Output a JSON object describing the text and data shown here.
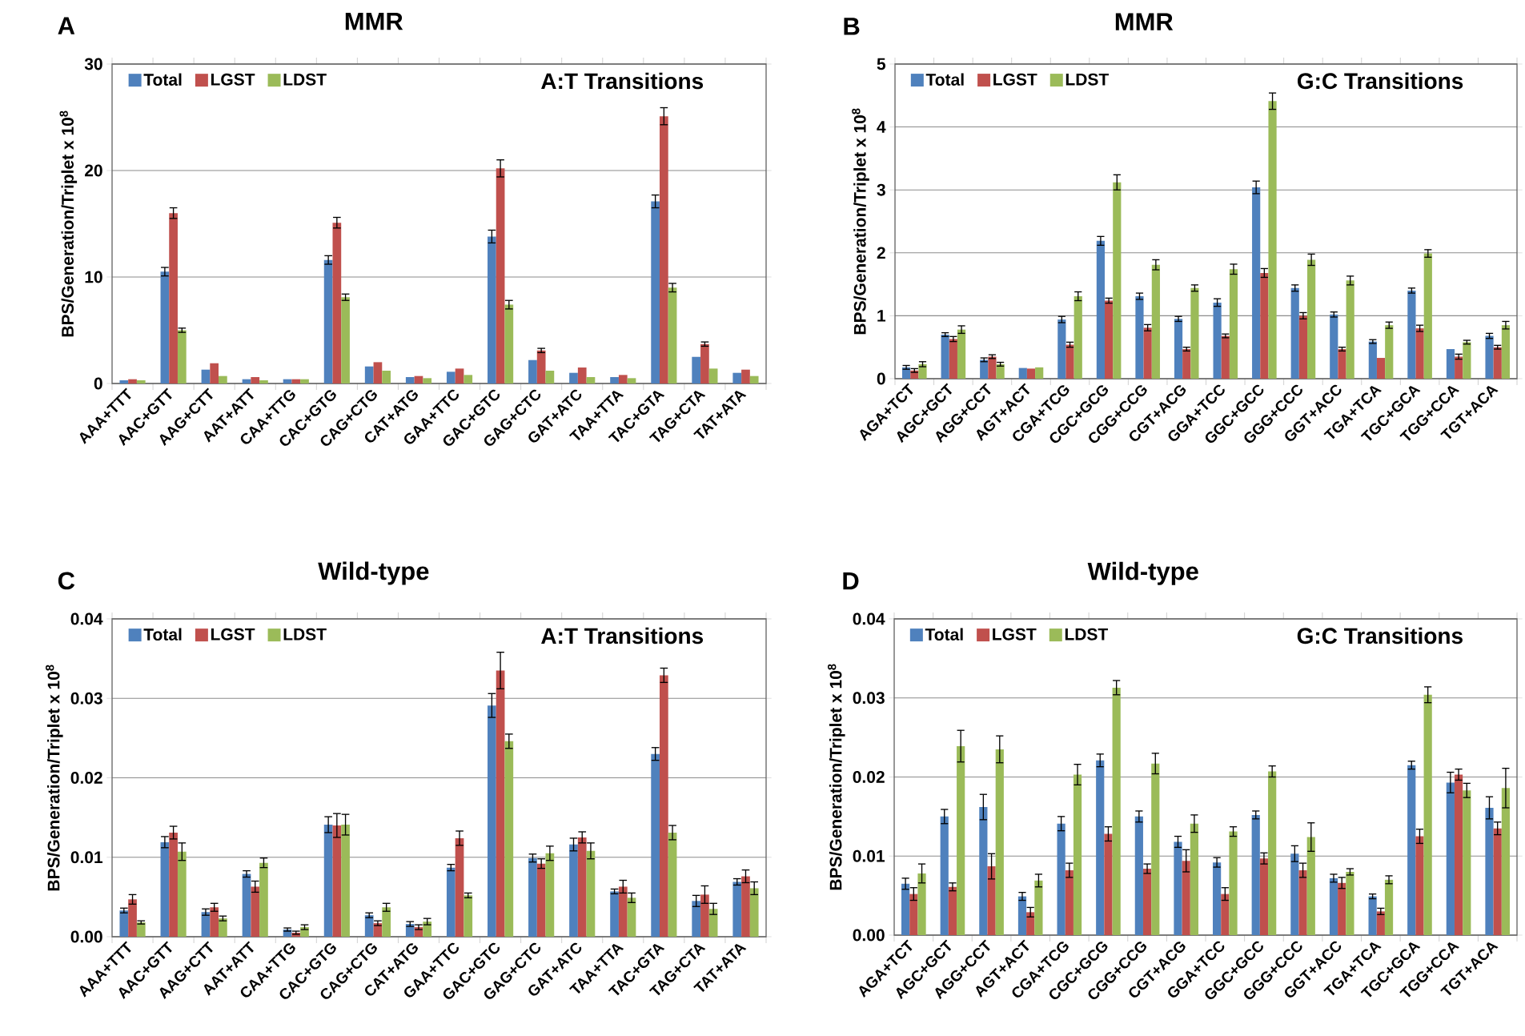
{
  "chart_data": [
    {
      "type": "bar",
      "title": "MMR",
      "subtitle": "A:T Transitions",
      "ylabel": "BPS/Generation/Triplet x 10$^{8}$",
      "annotations": [
        "A"
      ],
      "categories": [
        "AAA+TTT",
        "AAC+GTT",
        "AAG+CTT",
        "AAT+ATT",
        "CAA+TTG",
        "CAC+GTG",
        "CAG+CTG",
        "CAT+ATG",
        "GAA+TTC",
        "GAC+GTC",
        "GAG+CTC",
        "GAT+ATC",
        "TAA+TTA",
        "TAC+GTA",
        "TAG+CTA",
        "TAT+ATA"
      ],
      "series": [
        {
          "name": "Total",
          "color": "#4f81bd",
          "values": [
            0.3,
            10.5,
            1.3,
            0.4,
            0.4,
            11.6,
            1.6,
            0.6,
            1.1,
            13.8,
            2.2,
            1.0,
            0.6,
            17.1,
            2.5,
            1.0
          ],
          "errors": [
            null,
            0.4,
            null,
            null,
            null,
            0.4,
            null,
            null,
            null,
            0.6,
            null,
            null,
            null,
            0.6,
            null,
            null
          ]
        },
        {
          "name": "LGST",
          "color": "#c0504d",
          "values": [
            0.4,
            16.0,
            1.9,
            0.6,
            0.4,
            15.1,
            2.0,
            0.7,
            1.4,
            20.2,
            3.1,
            1.5,
            0.8,
            25.1,
            3.7,
            1.3
          ],
          "errors": [
            null,
            0.5,
            null,
            null,
            null,
            0.5,
            null,
            null,
            null,
            0.8,
            0.2,
            null,
            null,
            0.8,
            0.2,
            null
          ]
        },
        {
          "name": "LDST",
          "color": "#9bbb59",
          "values": [
            0.3,
            5.0,
            0.7,
            0.3,
            0.4,
            8.1,
            1.2,
            0.5,
            0.8,
            7.4,
            1.2,
            0.6,
            0.5,
            9.0,
            1.4,
            0.7
          ],
          "errors": [
            null,
            0.2,
            null,
            null,
            null,
            0.3,
            null,
            null,
            null,
            0.4,
            null,
            null,
            null,
            0.4,
            null,
            null
          ]
        }
      ],
      "ylim": [
        0,
        30
      ],
      "yticks": [
        0,
        10,
        20,
        30
      ],
      "grid": "y",
      "legend": "top left"
    },
    {
      "type": "bar",
      "title": "MMR",
      "subtitle": "G:C Transitions",
      "ylabel": "BPS/Generation/Triplet x 10$^{8}$",
      "annotations": [
        "B"
      ],
      "categories": [
        "AGA+TCT",
        "AGC+GCT",
        "AGG+CCT",
        "AGT+ACT",
        "CGA+TCG",
        "CGC+GCG",
        "CGG+CCG",
        "CGT+ACG",
        "GGA+TCC",
        "GGC+GCC",
        "GGG+CCC",
        "GGT+ACC",
        "TGA+TCA",
        "TGC+GCA",
        "TGG+CCA",
        "TGT+ACA"
      ],
      "series": [
        {
          "name": "Total",
          "color": "#4f81bd",
          "values": [
            0.18,
            0.7,
            0.3,
            0.17,
            0.94,
            2.19,
            1.31,
            0.95,
            1.21,
            3.04,
            1.44,
            1.02,
            0.59,
            1.4,
            0.47,
            0.68
          ],
          "errors": [
            0.03,
            0.03,
            0.03,
            null,
            0.05,
            0.07,
            0.05,
            0.04,
            0.06,
            0.1,
            0.05,
            0.04,
            0.03,
            0.04,
            null,
            0.04
          ]
        },
        {
          "name": "LGST",
          "color": "#c0504d",
          "values": [
            0.13,
            0.63,
            0.35,
            0.16,
            0.54,
            1.24,
            0.81,
            0.47,
            0.68,
            1.68,
            1.0,
            0.47,
            0.33,
            0.8,
            0.35,
            0.5
          ],
          "errors": [
            0.03,
            0.04,
            0.03,
            null,
            0.04,
            0.04,
            0.05,
            0.03,
            0.03,
            0.07,
            0.05,
            0.03,
            null,
            0.05,
            0.04,
            0.03
          ]
        },
        {
          "name": "LDST",
          "color": "#9bbb59",
          "values": [
            0.23,
            0.78,
            0.23,
            0.18,
            1.31,
            3.12,
            1.81,
            1.44,
            1.74,
            4.41,
            1.89,
            1.56,
            0.85,
            1.99,
            0.58,
            0.85
          ],
          "errors": [
            0.04,
            0.06,
            0.03,
            null,
            0.07,
            0.12,
            0.08,
            0.05,
            0.08,
            0.13,
            0.09,
            0.07,
            0.05,
            0.06,
            0.03,
            0.06
          ]
        }
      ],
      "ylim": [
        0,
        5
      ],
      "yticks": [
        0,
        1,
        2,
        3,
        4,
        5
      ],
      "grid": "y",
      "legend": "top left"
    },
    {
      "type": "bar",
      "title": "Wild-type",
      "subtitle": "A:T Transitions",
      "ylabel": "BPS/Generation/Triplet x 10$^{8}$",
      "annotations": [
        "C"
      ],
      "categories": [
        "AAA+TTT",
        "AAC+GTT",
        "AAG+CTT",
        "AAT+ATT",
        "CAA+TTG",
        "CAC+GTG",
        "CAG+CTG",
        "CAT+ATG",
        "GAA+TTC",
        "GAC+GTC",
        "GAG+CTC",
        "GAT+ATC",
        "TAA+TTA",
        "TAC+GTA",
        "TAG+CTA",
        "TAT+ATA"
      ],
      "series": [
        {
          "name": "Total",
          "color": "#4f81bd",
          "values": [
            0.0033,
            0.0119,
            0.0031,
            0.0079,
            0.0009,
            0.0141,
            0.0027,
            0.0016,
            0.0087,
            0.0291,
            0.0099,
            0.0116,
            0.0057,
            0.023,
            0.0045,
            0.0069
          ],
          "errors": [
            0.0003,
            0.0007,
            0.0004,
            0.0004,
            0.0002,
            0.001,
            0.0003,
            0.0003,
            0.0004,
            0.0015,
            0.0005,
            0.0008,
            0.0003,
            0.0008,
            0.0007,
            0.0004
          ]
        },
        {
          "name": "LGST",
          "color": "#c0504d",
          "values": [
            0.0047,
            0.0131,
            0.0037,
            0.0063,
            0.0005,
            0.014,
            0.0017,
            0.0012,
            0.0124,
            0.0335,
            0.0092,
            0.0125,
            0.0063,
            0.0329,
            0.0053,
            0.0076
          ],
          "errors": [
            0.0006,
            0.0008,
            0.0005,
            0.0007,
            0.0002,
            0.0015,
            0.0003,
            0.0003,
            0.0009,
            0.0023,
            0.0006,
            0.0007,
            0.0008,
            0.0009,
            0.0011,
            0.0008
          ]
        },
        {
          "name": "LDST",
          "color": "#9bbb59",
          "values": [
            0.0018,
            0.0107,
            0.0023,
            0.0093,
            0.0012,
            0.0141,
            0.0037,
            0.0019,
            0.0052,
            0.0246,
            0.0105,
            0.0108,
            0.0049,
            0.0131,
            0.0035,
            0.0061
          ],
          "errors": [
            0.0002,
            0.0011,
            0.0003,
            0.0006,
            0.0003,
            0.0013,
            0.0005,
            0.0004,
            0.0003,
            0.0009,
            0.0009,
            0.001,
            0.0006,
            0.0009,
            0.0007,
            0.0008
          ]
        }
      ],
      "ylim": [
        0,
        0.04
      ],
      "yticks": [
        {
          "value": 0,
          "label": "0.00"
        },
        {
          "value": 0.01,
          "label": "0.01"
        },
        {
          "value": 0.02,
          "label": "0.02"
        },
        {
          "value": 0.03,
          "label": "0.03"
        },
        {
          "value": 0.04,
          "label": "0.04"
        }
      ],
      "grid": "y",
      "legend": "top left"
    },
    {
      "type": "bar",
      "title": "Wild-type",
      "subtitle": "G:C Transitions",
      "ylabel": "BPS/Generation/Triplet x 10$^{8}$",
      "annotations": [
        "D"
      ],
      "categories": [
        "AGA+TCT",
        "AGC+GCT",
        "AGG+CCT",
        "AGT+ACT",
        "CGA+TCG",
        "CGC+GCG",
        "CGG+CCG",
        "CGT+ACG",
        "GGA+TCC",
        "GGC+GCC",
        "GGG+CCC",
        "GGT+ACC",
        "TGA+TCA",
        "TGC+GCA",
        "TGG+CCA",
        "TGT+ACA"
      ],
      "series": [
        {
          "name": "Total",
          "color": "#4f81bd",
          "values": [
            0.0065,
            0.015,
            0.0162,
            0.0049,
            0.0141,
            0.0221,
            0.015,
            0.0118,
            0.0092,
            0.0152,
            0.0103,
            0.0072,
            0.0049,
            0.0215,
            0.0193,
            0.0161
          ],
          "errors": [
            0.0007,
            0.0009,
            0.0016,
            0.0005,
            0.0009,
            0.0008,
            0.0007,
            0.0007,
            0.0006,
            0.0005,
            0.001,
            0.0005,
            0.0003,
            0.0005,
            0.0013,
            0.0014
          ]
        },
        {
          "name": "LGST",
          "color": "#c0504d",
          "values": [
            0.0052,
            0.0061,
            0.0087,
            0.0029,
            0.0082,
            0.0128,
            0.0084,
            0.0094,
            0.0052,
            0.0097,
            0.0082,
            0.0066,
            0.003,
            0.0125,
            0.0203,
            0.0135
          ],
          "errors": [
            0.0008,
            0.0005,
            0.0016,
            0.0006,
            0.0009,
            0.0009,
            0.0006,
            0.0014,
            0.0008,
            0.0007,
            0.0009,
            0.0007,
            0.0004,
            0.0009,
            0.0007,
            0.0008
          ]
        },
        {
          "name": "LDST",
          "color": "#9bbb59",
          "values": [
            0.0078,
            0.0239,
            0.0235,
            0.0069,
            0.0203,
            0.0313,
            0.0217,
            0.0141,
            0.0131,
            0.0207,
            0.0124,
            0.008,
            0.007,
            0.0304,
            0.0183,
            0.0186
          ],
          "errors": [
            0.0012,
            0.002,
            0.0017,
            0.0008,
            0.0013,
            0.0009,
            0.0013,
            0.0011,
            0.0006,
            0.0007,
            0.0018,
            0.0004,
            0.0005,
            0.001,
            0.0009,
            0.0025
          ]
        }
      ],
      "ylim": [
        0,
        0.04
      ],
      "yticks": [
        {
          "value": 0,
          "label": "0.00"
        },
        {
          "value": 0.01,
          "label": "0.01"
        },
        {
          "value": 0.02,
          "label": "0.02"
        },
        {
          "value": 0.03,
          "label": "0.03"
        },
        {
          "value": 0.04,
          "label": "0.04"
        }
      ],
      "grid": "y",
      "legend": "top left"
    }
  ]
}
